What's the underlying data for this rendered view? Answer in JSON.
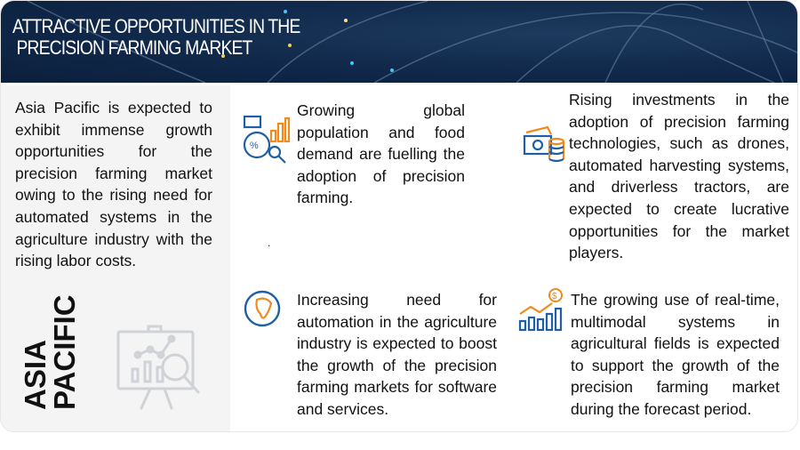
{
  "header": {
    "title_line1": "ATTRACTIVE OPPORTUNITIES IN THE",
    "title_line2": " PRECISION FARMING MARKET"
  },
  "region": {
    "description": "Asia Pacific is expected to exhibit immense growth opportunities for the precision farming market owing to the rising need for automated systems in the agriculture industry with the rising labor costs.",
    "label_line1": "ASIA",
    "label_line2": "PACIFIC"
  },
  "opportunities": [
    {
      "text": "Growing global population and food demand are fuelling the adoption of precision farming.",
      "icon": "analytics-chart-icon"
    },
    {
      "text": "Rising investments in the adoption of precision farming technologies, such as drones, automated harvesting systems, and driverless tractors, are expected to create lucrative opportunities for the market players.",
      "icon": "money-coins-icon"
    },
    {
      "text": "Increasing need for automation in the agriculture industry is expected to boost the growth of the precision farming markets for software and services.",
      "icon": "globe-icon"
    },
    {
      "text": "The growing use of real-time, multimodal systems in agricultural fields is expected to support the growth of the precision farming market during the forecast period.",
      "icon": "growth-chart-dollar-icon"
    }
  ],
  "stray_mark": ".",
  "colors": {
    "banner": "#10284a",
    "accent_blue": "#1f5fa8",
    "accent_orange": "#f08a1c",
    "panel": "#f4f4f5"
  }
}
